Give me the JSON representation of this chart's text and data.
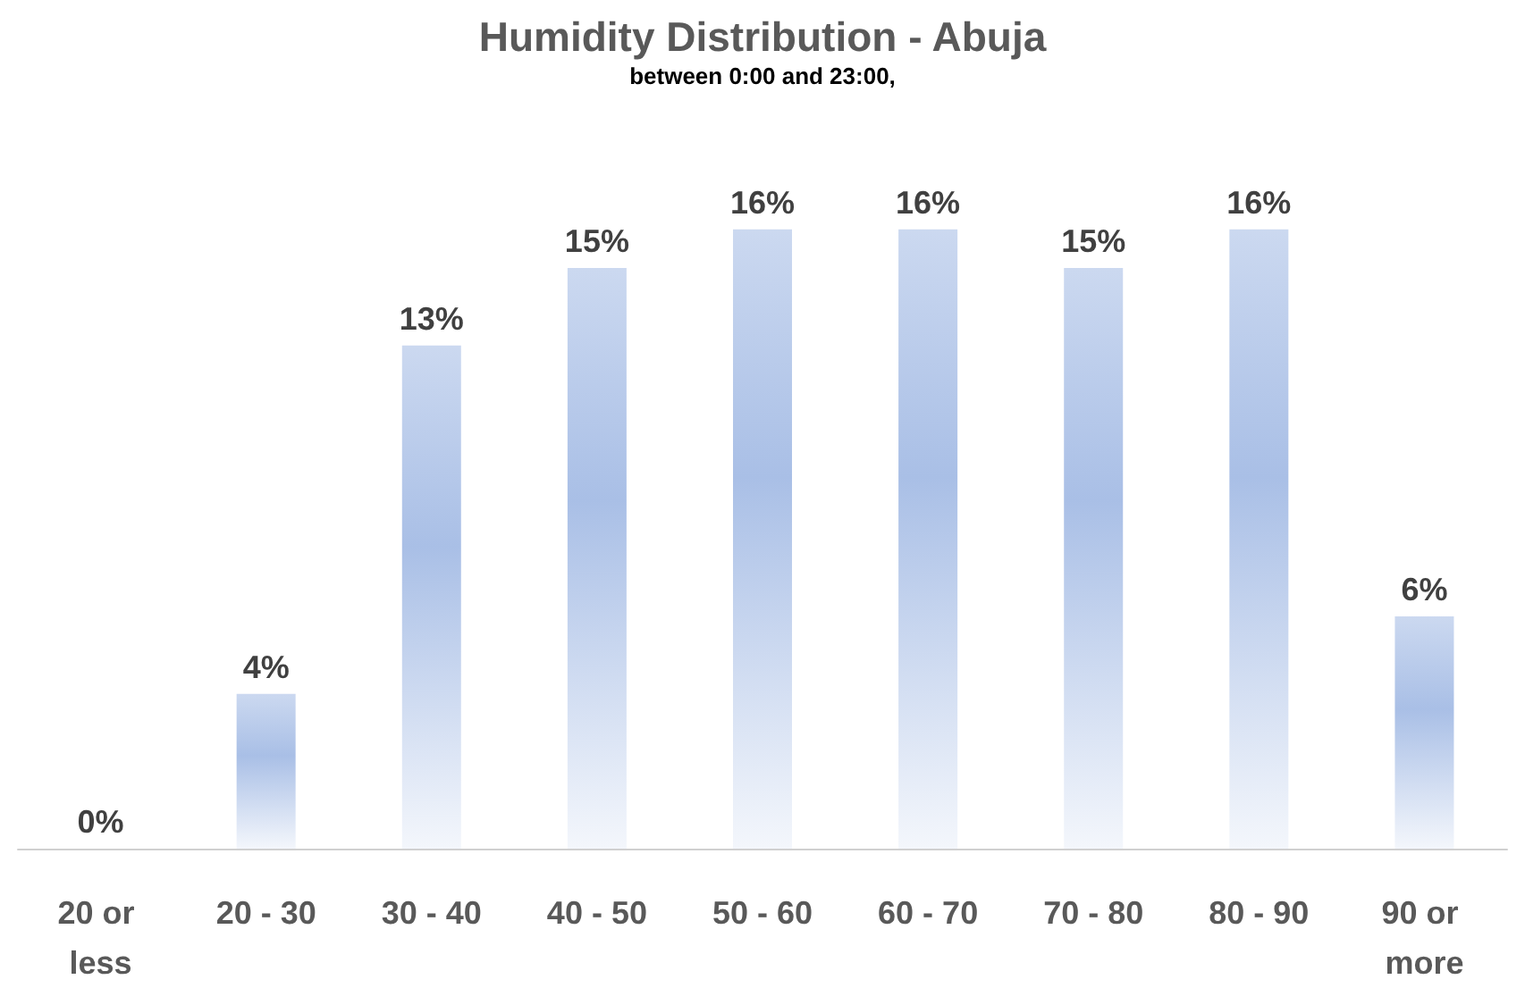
{
  "chart_data": {
    "type": "bar",
    "title": "Humidity Distribution - Abuja",
    "subtitle": "between 0:00 and 23:00,",
    "categories": [
      "20 or less",
      "20 - 30",
      "30 - 40",
      "40 - 50",
      "50 - 60",
      "60 - 70",
      "70 - 80",
      "80 - 90",
      "90 or more"
    ],
    "values": [
      0,
      4,
      13,
      15,
      16,
      16,
      15,
      16,
      6
    ],
    "value_labels": [
      "0%",
      "4%",
      "13%",
      "15%",
      "16%",
      "16%",
      "15%",
      "16%",
      "6%"
    ],
    "color": "#a9bfe6"
  }
}
